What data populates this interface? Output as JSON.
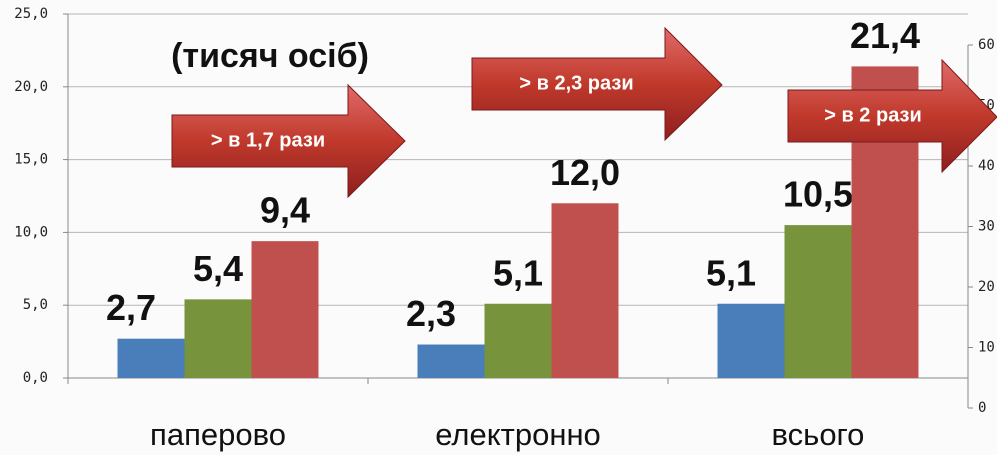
{
  "chart_data": {
    "type": "bar",
    "subtitle": "(тисяч осіб)",
    "categories": [
      "паперово",
      "електронно",
      "всього"
    ],
    "series": [
      {
        "color": "#4a7ebb",
        "values": [
          2.7,
          2.3,
          5.1
        ],
        "value_labels": [
          "2,7",
          "2,3",
          "5,1"
        ]
      },
      {
        "color": "#77933c",
        "values": [
          5.4,
          5.1,
          10.5
        ],
        "value_labels": [
          "5,4",
          "5,1",
          "10,5"
        ]
      },
      {
        "color": "#c0504d",
        "values": [
          9.4,
          12.0,
          21.4
        ],
        "value_labels": [
          "9,4",
          "12,0",
          "21,4"
        ]
      }
    ],
    "ylim": [
      0,
      25
    ],
    "yticks": [
      {
        "value": 0,
        "label": "0,0"
      },
      {
        "value": 5,
        "label": "5,0"
      },
      {
        "value": 10,
        "label": "10,0"
      },
      {
        "value": 15,
        "label": "15,0"
      },
      {
        "value": 20,
        "label": "20,0"
      },
      {
        "value": 25,
        "label": "25,0"
      }
    ],
    "y2lim": [
      0,
      60
    ],
    "y2ticks": [
      0,
      10,
      20,
      30,
      40,
      50,
      60
    ],
    "grid": true,
    "annotations": [
      "> в 1,7 рази",
      "> в 2,3 рази",
      "> в 2 рази"
    ]
  }
}
